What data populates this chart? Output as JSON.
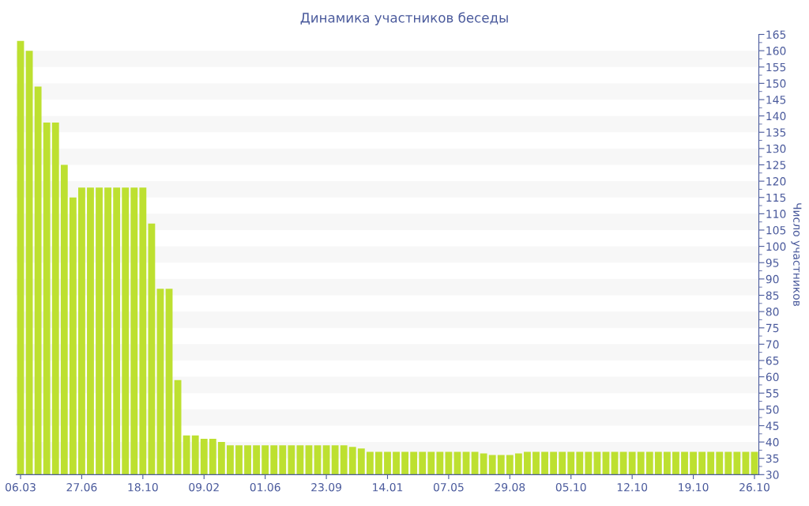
{
  "chart_data": {
    "type": "bar",
    "title": "Динамика участников беседы",
    "ylabel": "Число участников",
    "categories": [
      "06.03",
      null,
      null,
      null,
      null,
      null,
      null,
      "27.06",
      null,
      null,
      null,
      null,
      null,
      null,
      "18.10",
      null,
      null,
      null,
      null,
      null,
      null,
      "09.02",
      null,
      null,
      null,
      null,
      null,
      null,
      "01.06",
      null,
      null,
      null,
      null,
      null,
      null,
      "23.09",
      null,
      null,
      null,
      null,
      null,
      null,
      "14.01",
      null,
      null,
      null,
      null,
      null,
      null,
      "07.05",
      null,
      null,
      null,
      null,
      null,
      null,
      "29.08",
      null,
      null,
      null,
      null,
      null,
      null,
      "05.10",
      null,
      null,
      null,
      null,
      null,
      null,
      "12.10",
      null,
      null,
      null,
      null,
      null,
      null,
      "19.10",
      null,
      null,
      null,
      null,
      null,
      null,
      "26.10"
    ],
    "values": [
      163,
      160,
      149,
      138,
      138,
      125,
      115,
      118,
      118,
      118,
      118,
      118,
      118,
      118,
      118,
      107,
      87,
      87,
      59,
      42,
      42,
      41,
      41,
      40,
      39,
      39,
      39,
      39,
      39,
      39,
      39,
      39,
      39,
      39,
      39,
      39,
      39,
      39,
      38.5,
      38,
      37,
      37,
      37,
      37,
      37,
      37,
      37,
      37,
      37,
      37,
      37,
      37,
      37,
      36.5,
      36,
      36,
      36,
      36.5,
      37,
      37,
      37,
      37,
      37,
      37,
      37,
      37,
      37,
      37,
      37,
      37,
      37,
      37,
      37,
      37,
      37,
      37,
      37,
      37,
      37,
      37,
      37,
      37,
      37,
      37,
      37
    ],
    "color": "#bde030",
    "ylim": [
      30,
      165
    ],
    "yticks": [
      30,
      35,
      40,
      45,
      50,
      55,
      60,
      65,
      70,
      75,
      80,
      85,
      90,
      95,
      100,
      105,
      110,
      115,
      120,
      125,
      130,
      135,
      140,
      145,
      150,
      155,
      160,
      165
    ],
    "bands": [
      {
        "axis": "y",
        "from": 35,
        "to": 40,
        "color": "#f7f7f7"
      },
      {
        "axis": "y",
        "from": 45,
        "to": 50,
        "color": "#f7f7f7"
      },
      {
        "axis": "y",
        "from": 55,
        "to": 60,
        "color": "#f7f7f7"
      },
      {
        "axis": "y",
        "from": 65,
        "to": 70,
        "color": "#f7f7f7"
      },
      {
        "axis": "y",
        "from": 75,
        "to": 80,
        "color": "#f7f7f7"
      },
      {
        "axis": "y",
        "from": 85,
        "to": 90,
        "color": "#f7f7f7"
      },
      {
        "axis": "y",
        "from": 95,
        "to": 100,
        "color": "#f7f7f7"
      },
      {
        "axis": "y",
        "from": 105,
        "to": 110,
        "color": "#f7f7f7"
      },
      {
        "axis": "y",
        "from": 115,
        "to": 120,
        "color": "#f7f7f7"
      },
      {
        "axis": "y",
        "from": 125,
        "to": 130,
        "color": "#f7f7f7"
      },
      {
        "axis": "y",
        "from": 135,
        "to": 140,
        "color": "#f7f7f7"
      },
      {
        "axis": "y",
        "from": 145,
        "to": 150,
        "color": "#f7f7f7"
      },
      {
        "axis": "y",
        "from": 155,
        "to": 160,
        "color": "#f7f7f7"
      }
    ]
  }
}
